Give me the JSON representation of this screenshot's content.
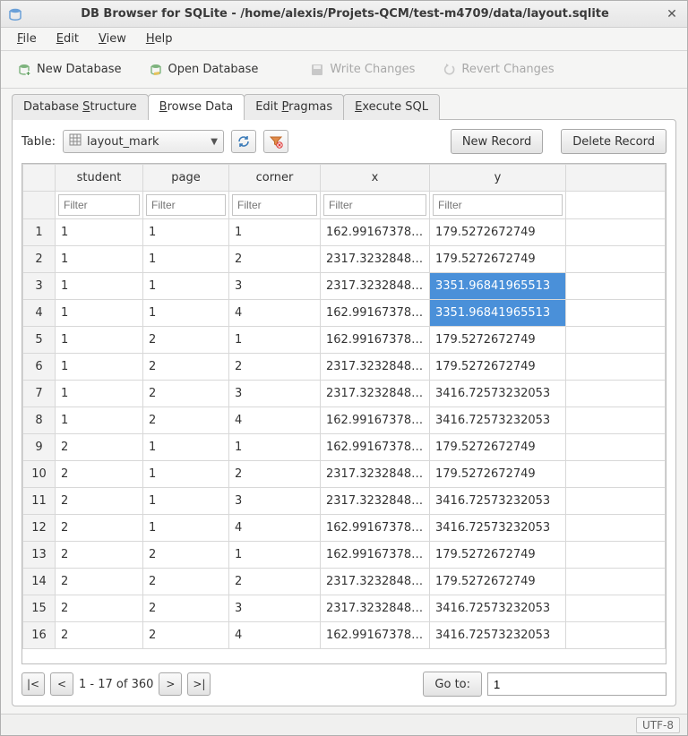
{
  "window": {
    "title": "DB Browser for SQLite - /home/alexis/Projets-QCM/test-m4709/data/layout.sqlite"
  },
  "menubar": {
    "items": [
      {
        "label": "File",
        "accel": "F"
      },
      {
        "label": "Edit",
        "accel": "E"
      },
      {
        "label": "View",
        "accel": "V"
      },
      {
        "label": "Help",
        "accel": "H"
      }
    ]
  },
  "toolbar": {
    "new_db": "New Database",
    "open_db": "Open Database",
    "write_changes": "Write Changes",
    "revert_changes": "Revert Changes"
  },
  "tabs": {
    "items": [
      {
        "label": "Database Structure",
        "accel": "S"
      },
      {
        "label": "Browse Data",
        "accel": "B"
      },
      {
        "label": "Edit Pragmas",
        "accel": "P"
      },
      {
        "label": "Execute SQL",
        "accel": "E"
      }
    ],
    "active_index": 1
  },
  "browse": {
    "table_label": "Table:",
    "table_name": "layout_mark",
    "new_record": "New Record",
    "delete_record": "Delete Record",
    "columns": [
      "student",
      "page",
      "corner",
      "x",
      "y"
    ],
    "filter_placeholder": "Filter",
    "rows": [
      {
        "n": 1,
        "student": "1",
        "page": "1",
        "corner": "1",
        "x": "162.991673781...",
        "y": "179.5272672749"
      },
      {
        "n": 2,
        "student": "1",
        "page": "1",
        "corner": "2",
        "x": "2317.32328485...",
        "y": "179.5272672749"
      },
      {
        "n": 3,
        "student": "1",
        "page": "1",
        "corner": "3",
        "x": "2317.32328485...",
        "y": "3351.96841965513",
        "ysel": true
      },
      {
        "n": 4,
        "student": "1",
        "page": "1",
        "corner": "4",
        "x": "162.991673781...",
        "y": "3351.96841965513",
        "ysel": true
      },
      {
        "n": 5,
        "student": "1",
        "page": "2",
        "corner": "1",
        "x": "162.991673781...",
        "y": "179.5272672749"
      },
      {
        "n": 6,
        "student": "1",
        "page": "2",
        "corner": "2",
        "x": "2317.32328485...",
        "y": "179.5272672749"
      },
      {
        "n": 7,
        "student": "1",
        "page": "2",
        "corner": "3",
        "x": "2317.32328485...",
        "y": "3416.72573232053"
      },
      {
        "n": 8,
        "student": "1",
        "page": "2",
        "corner": "4",
        "x": "162.991673781...",
        "y": "3416.72573232053"
      },
      {
        "n": 9,
        "student": "2",
        "page": "1",
        "corner": "1",
        "x": "162.991673781...",
        "y": "179.5272672749"
      },
      {
        "n": 10,
        "student": "2",
        "page": "1",
        "corner": "2",
        "x": "2317.32328485...",
        "y": "179.5272672749"
      },
      {
        "n": 11,
        "student": "2",
        "page": "1",
        "corner": "3",
        "x": "2317.32328485...",
        "y": "3416.72573232053"
      },
      {
        "n": 12,
        "student": "2",
        "page": "1",
        "corner": "4",
        "x": "162.991673781...",
        "y": "3416.72573232053"
      },
      {
        "n": 13,
        "student": "2",
        "page": "2",
        "corner": "1",
        "x": "162.991673781...",
        "y": "179.5272672749"
      },
      {
        "n": 14,
        "student": "2",
        "page": "2",
        "corner": "2",
        "x": "2317.32328485...",
        "y": "179.5272672749"
      },
      {
        "n": 15,
        "student": "2",
        "page": "2",
        "corner": "3",
        "x": "2317.32328485...",
        "y": "3416.72573232053"
      },
      {
        "n": 16,
        "student": "2",
        "page": "2",
        "corner": "4",
        "x": "162.991673781...",
        "y": "3416.72573232053"
      }
    ],
    "pager": {
      "range": "1 - 17 of 360",
      "goto_label": "Go to:",
      "goto_value": "1"
    }
  },
  "status": {
    "encoding": "UTF-8"
  },
  "colors": {
    "selection": "#4a90d9"
  }
}
